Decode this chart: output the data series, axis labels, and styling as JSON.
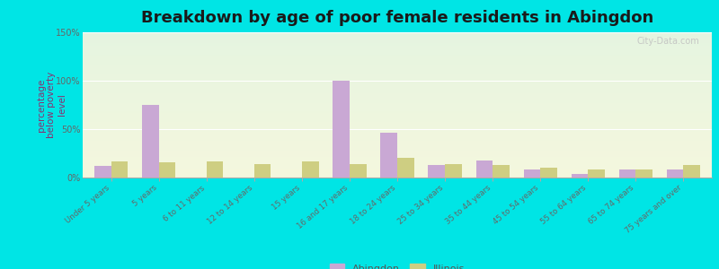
{
  "title": "Breakdown by age of poor female residents in Abingdon",
  "ylabel": "percentage\nbelow poverty\nlevel",
  "categories": [
    "Under 5 years",
    "5 years",
    "6 to 11 years",
    "12 to 14 years",
    "15 years",
    "16 and 17 years",
    "18 to 24 years",
    "25 to 34 years",
    "35 to 44 years",
    "45 to 54 years",
    "55 to 64 years",
    "65 to 74 years",
    "75 years and over"
  ],
  "abingdon": [
    12,
    75,
    0,
    0,
    0,
    100,
    46,
    13,
    18,
    8,
    4,
    8,
    8
  ],
  "illinois": [
    17,
    16,
    17,
    14,
    17,
    14,
    20,
    14,
    13,
    10,
    8,
    8,
    13
  ],
  "abingdon_color": "#c9a8d4",
  "illinois_color": "#cece82",
  "outer_bg": "#00e5e5",
  "ylim": [
    0,
    150
  ],
  "yticks": [
    0,
    50,
    100,
    150
  ],
  "ytick_labels": [
    "0%",
    "50%",
    "100%",
    "150%"
  ],
  "bar_width": 0.35,
  "title_fontsize": 13,
  "axis_label_fontsize": 7.5,
  "tick_fontsize": 7,
  "legend_labels": [
    "Abingdon",
    "Illinois"
  ],
  "watermark": "City-Data.com"
}
